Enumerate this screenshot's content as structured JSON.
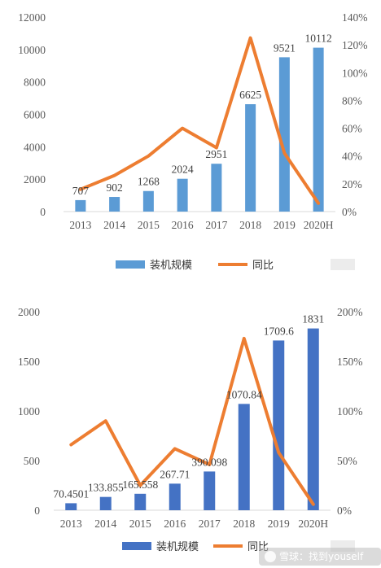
{
  "chart_data": [
    {
      "type": "bar",
      "categories": [
        "2013",
        "2014",
        "2015",
        "2016",
        "2017",
        "2018",
        "2019",
        "2020H"
      ],
      "series": [
        {
          "name": "装机规模",
          "kind": "bar",
          "axis": "left",
          "color": "#5b9bd5",
          "values": [
            707,
            902,
            1268,
            2024,
            2951,
            6625,
            9521,
            10112
          ],
          "labels": [
            "707",
            "902",
            "1268",
            "2024",
            "2951",
            "6625",
            "9521",
            "10112"
          ]
        },
        {
          "name": "同比",
          "kind": "line",
          "axis": "right",
          "color": "#ed7d31",
          "values": [
            16,
            26,
            40,
            60,
            46,
            125,
            42,
            6
          ]
        }
      ],
      "y_left": {
        "min": 0,
        "max": 12000,
        "step": 2000,
        "ticks": [
          "0",
          "2000",
          "4000",
          "6000",
          "8000",
          "10000",
          "12000"
        ]
      },
      "y_right": {
        "min": 0,
        "max": 140,
        "step": 20,
        "ticks": [
          "0%",
          "20%",
          "40%",
          "60%",
          "80%",
          "100%",
          "120%",
          "140%"
        ]
      },
      "grid": false,
      "legend": "bottom"
    },
    {
      "type": "bar",
      "categories": [
        "2013",
        "2014",
        "2015",
        "2016",
        "2017",
        "2018",
        "2019",
        "2020H"
      ],
      "series": [
        {
          "name": "装机规模",
          "kind": "bar",
          "axis": "left",
          "color": "#4472c4",
          "values": [
            70.4501,
            133.855,
            165.558,
            267.71,
            390.098,
            1070.84,
            1709.6,
            1831
          ],
          "labels": [
            "70.4501",
            "133.855",
            "165.558",
            "267.71",
            "390.098",
            "1070.84",
            "1709.6",
            "1831"
          ]
        },
        {
          "name": "同比",
          "kind": "line",
          "axis": "right",
          "color": "#ed7d31",
          "values": [
            66,
            90,
            25,
            62,
            46,
            173,
            58,
            6
          ]
        }
      ],
      "y_left": {
        "min": 0,
        "max": 2000,
        "step": 500,
        "ticks": [
          "0",
          "500",
          "1000",
          "1500",
          "2000"
        ]
      },
      "y_right": {
        "min": 0,
        "max": 200,
        "step": 50,
        "ticks": [
          "0%",
          "50%",
          "100%",
          "150%",
          "200%"
        ]
      },
      "grid": false,
      "legend": "bottom"
    }
  ],
  "watermark": {
    "text": "雪球：找到youself"
  }
}
